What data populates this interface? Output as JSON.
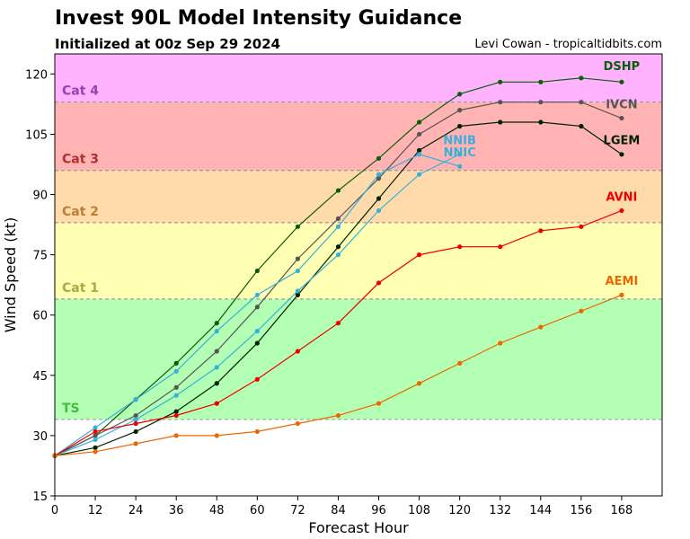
{
  "header": {
    "title": "Invest 90L Model Intensity Guidance",
    "subtitle": "Initialized at 00z Sep 29 2024",
    "credit": "Levi Cowan - tropicaltidbits.com"
  },
  "chart_data": {
    "type": "line",
    "xlabel": "Forecast Hour",
    "ylabel": "Wind Speed (kt)",
    "xlim": [
      0,
      180
    ],
    "ylim": [
      15,
      125
    ],
    "xticks": [
      0,
      12,
      24,
      36,
      48,
      60,
      72,
      84,
      96,
      108,
      120,
      132,
      144,
      156,
      168
    ],
    "yticks": [
      15,
      30,
      45,
      60,
      75,
      90,
      105,
      120
    ],
    "grid": false,
    "legend": "inline labels at line ends",
    "bands": [
      {
        "label": "TS",
        "from": 34,
        "to": 64,
        "color": "#b3ffb3",
        "label_color": "#44bb44"
      },
      {
        "label": "Cat 1",
        "from": 64,
        "to": 83,
        "color": "#ffffb3",
        "label_color": "#aaaa44"
      },
      {
        "label": "Cat 2",
        "from": 83,
        "to": 96,
        "color": "#ffdaaa",
        "label_color": "#b8803a"
      },
      {
        "label": "Cat 3",
        "from": 96,
        "to": 113,
        "color": "#ffb3b3",
        "label_color": "#b03030"
      },
      {
        "label": "Cat 4",
        "from": 113,
        "to": 125,
        "color": "#ffb3ff",
        "label_color": "#9a3fb0"
      }
    ],
    "series": [
      {
        "name": "DSHP",
        "color": "#0b5d0b",
        "x": [
          0,
          12,
          24,
          36,
          48,
          60,
          72,
          84,
          96,
          108,
          120,
          132,
          144,
          156,
          168
        ],
        "y": [
          25,
          30,
          39,
          48,
          58,
          71,
          82,
          91,
          99,
          108,
          115,
          118,
          118,
          119,
          118
        ]
      },
      {
        "name": "IVCN",
        "color": "#555555",
        "x": [
          0,
          12,
          24,
          36,
          48,
          60,
          72,
          84,
          96,
          108,
          120,
          132,
          144,
          156,
          168
        ],
        "y": [
          25,
          30,
          35,
          42,
          51,
          62,
          74,
          84,
          94,
          105,
          111,
          113,
          113,
          113,
          109
        ]
      },
      {
        "name": "LGEM",
        "color": "#002200",
        "x": [
          0,
          12,
          24,
          36,
          48,
          60,
          72,
          84,
          96,
          108,
          120,
          132,
          144,
          156,
          168
        ],
        "y": [
          25,
          27,
          31,
          36,
          43,
          53,
          65,
          77,
          89,
          101,
          107,
          108,
          108,
          107,
          100
        ]
      },
      {
        "name": "NNIB",
        "color": "#3ab0d8",
        "x": [
          0,
          12,
          24,
          36,
          48,
          60,
          72,
          84,
          96,
          108,
          120
        ],
        "y": [
          25,
          29,
          34,
          40,
          47,
          56,
          66,
          75,
          86,
          95,
          100
        ]
      },
      {
        "name": "NNIC",
        "color": "#3ab0d8",
        "x": [
          0,
          12,
          24,
          36,
          48,
          60,
          72,
          84,
          96,
          108,
          120
        ],
        "y": [
          25,
          32,
          39,
          46,
          56,
          65,
          71,
          82,
          95,
          100,
          97
        ]
      },
      {
        "name": "AVNI",
        "color": "#ee0000",
        "x": [
          0,
          12,
          24,
          36,
          48,
          60,
          72,
          84,
          96,
          108,
          120,
          132,
          144,
          156,
          168
        ],
        "y": [
          25,
          31,
          33,
          35,
          38,
          44,
          51,
          58,
          68,
          75,
          77,
          77,
          81,
          82,
          86
        ]
      },
      {
        "name": "AEMI",
        "color": "#ee6600",
        "x": [
          0,
          12,
          24,
          36,
          48,
          60,
          72,
          84,
          96,
          108,
          120,
          132,
          144,
          156,
          168
        ],
        "y": [
          25,
          26,
          28,
          30,
          30,
          31,
          33,
          35,
          38,
          43,
          48,
          53,
          57,
          61,
          65
        ]
      }
    ],
    "series_labels": [
      {
        "name": "DSHP",
        "x": 168,
        "y": 121
      },
      {
        "name": "IVCN",
        "x": 168,
        "y": 111.5
      },
      {
        "name": "LGEM",
        "x": 168,
        "y": 102.5
      },
      {
        "name": "NNIB",
        "x": 120,
        "y": 102.5
      },
      {
        "name": "NNIC",
        "x": 120,
        "y": 99.5
      },
      {
        "name": "AVNI",
        "x": 168,
        "y": 88.5
      },
      {
        "name": "AEMI",
        "x": 168,
        "y": 67.5
      }
    ]
  }
}
